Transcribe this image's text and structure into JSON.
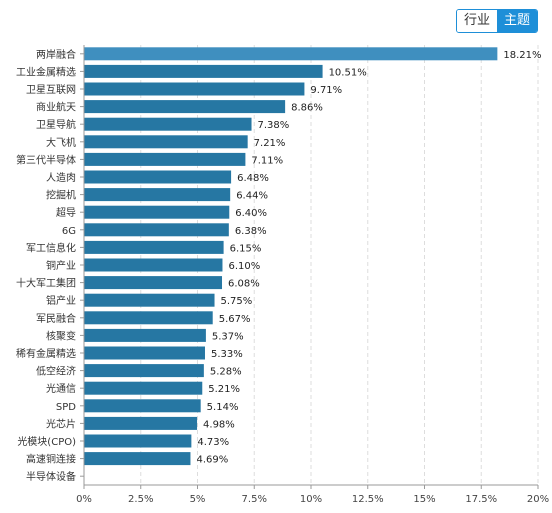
{
  "toggle": {
    "items": [
      {
        "label": "行业",
        "active": false
      },
      {
        "label": "主题",
        "active": true
      }
    ]
  },
  "colors": {
    "bar": "#2677a3",
    "bar_top": "#3f8fbf",
    "accent": "#1e8fd8",
    "grid": "#dddddd",
    "axis": "#999999"
  },
  "chart_data": {
    "type": "bar",
    "orientation": "horizontal",
    "categories": [
      "两岸融合",
      "工业金属精选",
      "卫星互联网",
      "商业航天",
      "卫星导航",
      "大飞机",
      "第三代半导体",
      "人造肉",
      "挖掘机",
      "超导",
      "6G",
      "军工信息化",
      "铜产业",
      "十大军工集团",
      "铝产业",
      "军民融合",
      "核聚变",
      "稀有金属精选",
      "低空经济",
      "光通信",
      "SPD",
      "光芯片",
      "光模块(CPO)",
      "高速铜连接",
      "半导体设备"
    ],
    "values": [
      18.21,
      10.51,
      9.71,
      8.86,
      7.38,
      7.21,
      7.11,
      6.48,
      6.44,
      6.4,
      6.38,
      6.15,
      6.1,
      6.08,
      5.75,
      5.67,
      5.37,
      5.33,
      5.28,
      5.21,
      5.14,
      4.98,
      4.73,
      4.69,
      null
    ],
    "value_labels": [
      "18.21%",
      "10.51%",
      "9.71%",
      "8.86%",
      "7.38%",
      "7.21%",
      "7.11%",
      "6.48%",
      "6.44%",
      "6.40%",
      "6.38%",
      "6.15%",
      "6.10%",
      "6.08%",
      "5.75%",
      "5.67%",
      "5.37%",
      "5.33%",
      "5.28%",
      "5.21%",
      "5.14%",
      "4.98%",
      "4.73%",
      "4.69%",
      ""
    ],
    "xlim": [
      0,
      20
    ],
    "xticks": [
      0,
      2.5,
      5,
      7.5,
      10,
      12.5,
      15,
      17.5,
      20
    ],
    "xtick_labels": [
      "0%",
      "2.5%",
      "5%",
      "7.5%",
      "10%",
      "12.5%",
      "15%",
      "17.5%",
      "20%"
    ],
    "grid": "vertical dashed",
    "title": "",
    "xlabel": "",
    "ylabel": ""
  }
}
